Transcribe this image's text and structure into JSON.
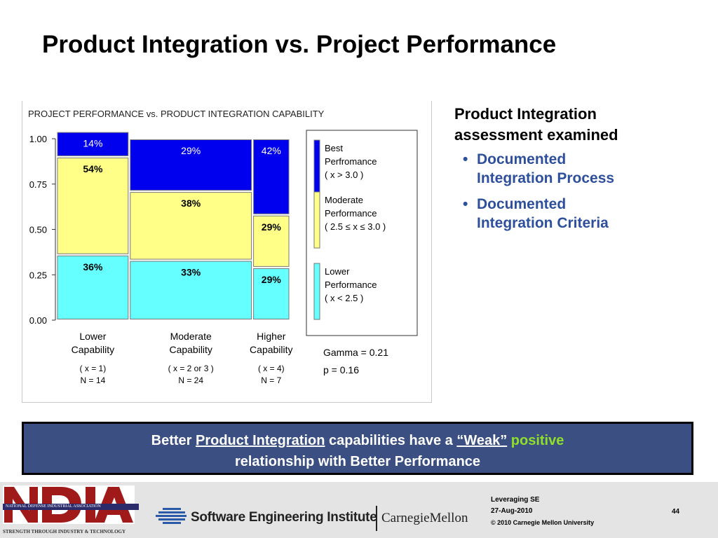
{
  "slide": {
    "title": "Product Integration vs. Project Performance",
    "side": {
      "heading_lines": [
        "Product Integration",
        "assessment examined"
      ],
      "bullets": [
        {
          "lines": [
            "Documented",
            "Integration Process"
          ]
        },
        {
          "lines": [
            "Documented",
            "Integration Criteria"
          ]
        }
      ]
    },
    "banner": {
      "parts": [
        "Better ",
        "Product Integration",
        " capabilities have a ",
        "“Weak”",
        " ",
        "positive"
      ],
      "line2": "relationship with Better Performance"
    },
    "footer": {
      "ndia_band": "NATIONAL DEFENSE INDUSTRIAL ASSOCIATION",
      "ndia_tagline": "STRENGTH THROUGH INDUSTRY & TECHNOLOGY",
      "sei_name": "Software Engineering Institute",
      "cmu_name": "CarnegieMellon",
      "line1": "Leveraging SE",
      "line2": "27-Aug-2010",
      "line3": "© 2010 Carnegie Mellon University",
      "page": "44"
    }
  },
  "chart_data": {
    "type": "bar",
    "stacked": true,
    "title": "PROJECT PERFORMANCE vs. PRODUCT INTEGRATION CAPABILITY",
    "categories": [
      {
        "lines": [
          "Lower",
          "Capability"
        ],
        "condition": "( x = 1)",
        "n": "N = 14",
        "width_weight": 14
      },
      {
        "lines": [
          "Moderate",
          "Capability"
        ],
        "condition": "( x = 2 or 3 )",
        "n": "N = 24",
        "width_weight": 24
      },
      {
        "lines": [
          "Higher",
          "Capability"
        ],
        "condition": "( x = 4)",
        "n": "N = 7",
        "width_weight": 7
      }
    ],
    "series": [
      {
        "name": "Lower Performance",
        "legend_lines": [
          "Lower",
          "Performance",
          "( x < 2.5 )"
        ],
        "color": "#66ffff",
        "values": [
          0.36,
          0.33,
          0.29
        ],
        "labels": [
          "36%",
          "33%",
          "29%"
        ]
      },
      {
        "name": "Moderate Performance",
        "legend_lines": [
          "Moderate",
          "Performance",
          "( 2.5 ≤ x ≤ 3.0 )"
        ],
        "color": "#ffff88",
        "values": [
          0.54,
          0.38,
          0.29
        ],
        "labels": [
          "54%",
          "38%",
          "29%"
        ]
      },
      {
        "name": "Best Perfromance",
        "legend_lines": [
          "Best",
          "Perfromance",
          "( x > 3.0 )"
        ],
        "color": "#0000ee",
        "values": [
          0.14,
          0.29,
          0.42
        ],
        "labels": [
          "14%",
          "29%",
          "42%"
        ]
      }
    ],
    "yticks": [
      "0.00",
      "0.25",
      "0.50",
      "0.75",
      "1.00"
    ],
    "ylim": [
      0,
      1
    ],
    "stats": [
      "Gamma = 0.21",
      "p = 0.16"
    ]
  }
}
